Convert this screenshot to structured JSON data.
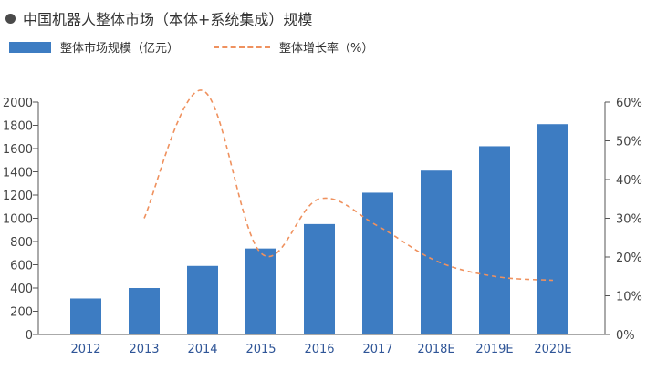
{
  "header": {
    "title": "中国机器人整体市场（本体+系统集成）规模"
  },
  "legend": {
    "bar_label": "整体市场规模（亿元）",
    "line_label": "整体增长率（%）"
  },
  "colors": {
    "bar": "#3d7cc2",
    "line": "#ef915e",
    "axis": "#555555"
  },
  "chart_data": {
    "type": "bar",
    "title": "中国机器人整体市场（本体+系统集成）规模",
    "categories": [
      "2012",
      "2013",
      "2014",
      "2015",
      "2016",
      "2017",
      "2018E",
      "2019E",
      "2020E"
    ],
    "series": [
      {
        "name": "整体市场规模（亿元）",
        "type": "bar",
        "axis": "left",
        "values": [
          310,
          400,
          590,
          740,
          950,
          1220,
          1410,
          1620,
          1810
        ]
      },
      {
        "name": "整体增长率（%）",
        "type": "line",
        "style": "dashed",
        "axis": "right",
        "values": [
          null,
          30,
          63,
          21,
          35,
          28,
          19,
          15,
          14
        ]
      }
    ],
    "y_left": {
      "ticks": [
        "2000",
        "1800",
        "1600",
        "1400",
        "1200",
        "1000",
        "800",
        "600",
        "400",
        "200",
        "0"
      ],
      "ylim": [
        0,
        2000
      ]
    },
    "y_right": {
      "ticks": [
        "60%",
        "50%",
        "40%",
        "30%",
        "20%",
        "10%",
        "0%"
      ],
      "ylim": [
        0,
        60
      ]
    },
    "grid": false,
    "legend_position": "top-left"
  }
}
